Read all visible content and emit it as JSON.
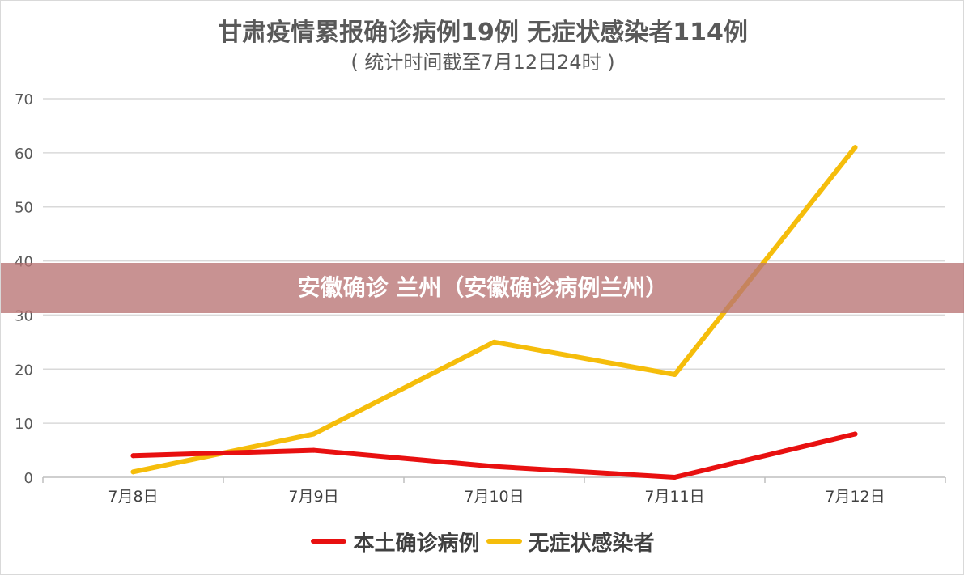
{
  "title": "甘肃疫情累报确诊病例19例 无症状感染者114例",
  "subtitle": "( 统计时间截至7月12日24时 )",
  "banner": "安徽确诊 兰州（安徽确诊病例兰州）",
  "chart_data": {
    "type": "line",
    "title": "甘肃疫情累报确诊病例19例 无症状感染者114例",
    "subtitle": "( 统计时间截至7月12日24时 )",
    "categories": [
      "7月8日",
      "7月9日",
      "7月10日",
      "7月11日",
      "7月12日"
    ],
    "ylim": [
      0,
      70
    ],
    "yticks": [
      0,
      10,
      20,
      30,
      40,
      50,
      60,
      70
    ],
    "grid": true,
    "legend": "bottom",
    "series": [
      {
        "name": "本土确诊病例",
        "color": "#e81010",
        "values": [
          4,
          5,
          2,
          0,
          8
        ]
      },
      {
        "name": "无症状感染者",
        "color": "#f5bd0b",
        "values": [
          1,
          8,
          25,
          19,
          61
        ]
      }
    ]
  }
}
